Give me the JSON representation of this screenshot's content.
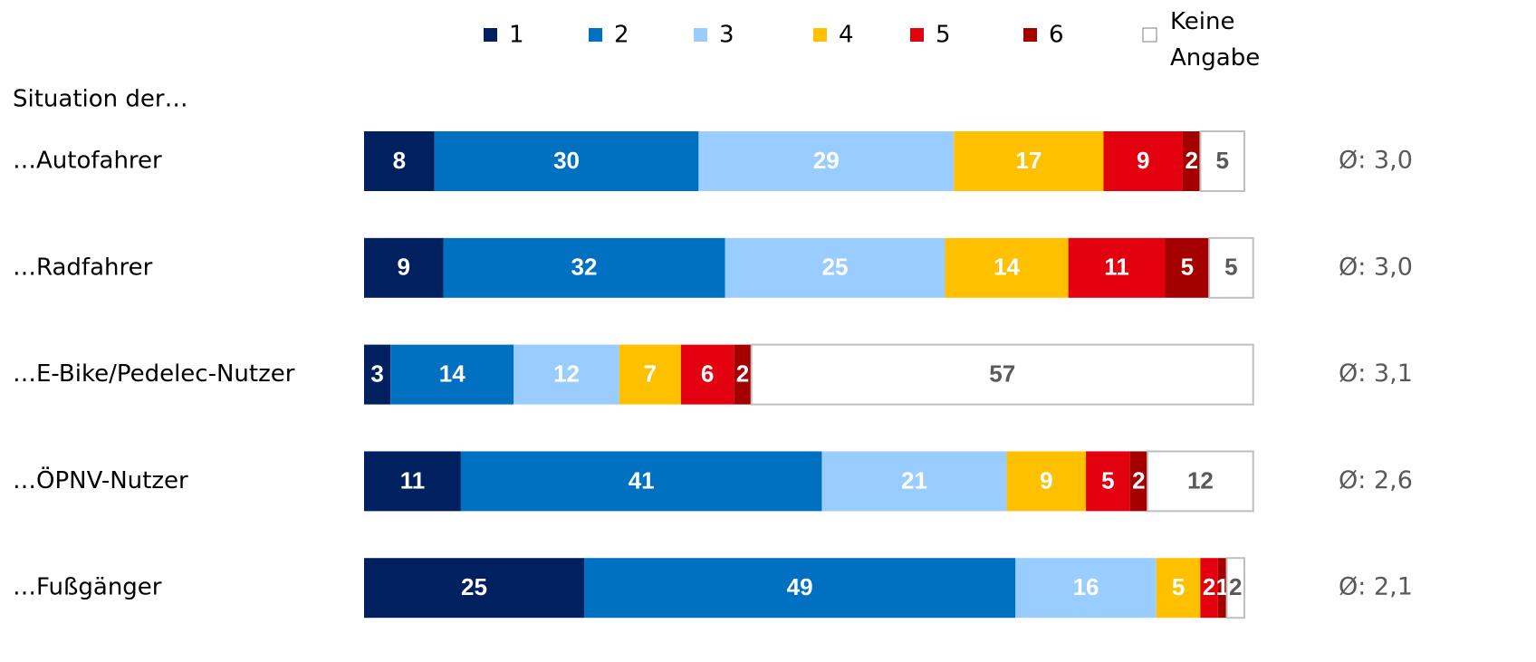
{
  "chart_data": {
    "type": "stacked-bar-horizontal",
    "subtitle": "Situation der…",
    "categories": [
      "…Autofahrer",
      "…Radfahrer",
      "…E-Bike/Pedelec-Nutzer",
      "…ÖPNV-Nutzer",
      "…Fußgänger"
    ],
    "series": [
      {
        "name": "1",
        "color": "#002060",
        "values": [
          8,
          9,
          3,
          11,
          25
        ]
      },
      {
        "name": "2",
        "color": "#0070c0",
        "values": [
          30,
          32,
          14,
          41,
          49
        ]
      },
      {
        "name": "3",
        "color": "#99ccff",
        "values": [
          29,
          25,
          12,
          21,
          16
        ]
      },
      {
        "name": "4",
        "color": "#ffc000",
        "values": [
          17,
          14,
          7,
          9,
          5
        ]
      },
      {
        "name": "5",
        "color": "#e3000f",
        "values": [
          9,
          11,
          6,
          5,
          2
        ]
      },
      {
        "name": "6",
        "color": "#a50000",
        "values": [
          2,
          5,
          2,
          2,
          1
        ]
      },
      {
        "name": "Keine Angabe",
        "color": "#ffffff",
        "values": [
          5,
          5,
          57,
          12,
          2
        ]
      }
    ],
    "annotations": [
      "Ø: 3,0",
      "Ø: 3,0",
      "Ø: 3,1",
      "Ø: 2,6",
      "Ø: 2,1"
    ]
  }
}
